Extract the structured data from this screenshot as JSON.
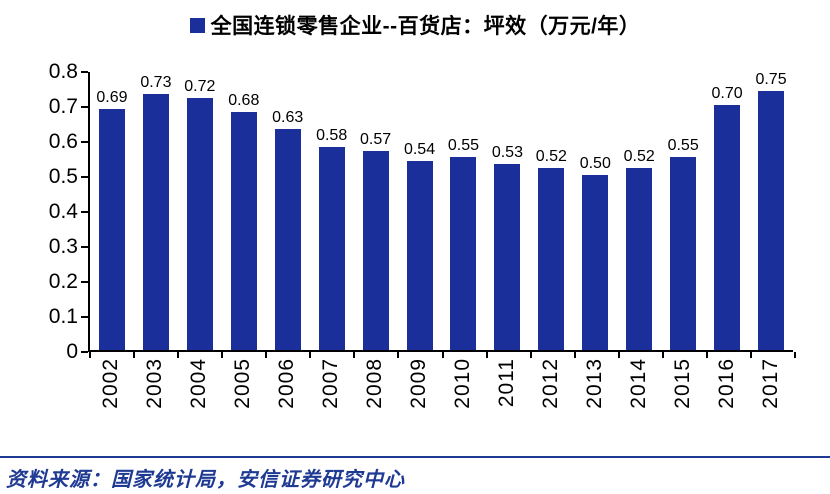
{
  "chart_data": {
    "type": "bar",
    "title": "全国连锁零售企业--百货店：坪效（万元/年）",
    "categories": [
      "2002",
      "2003",
      "2004",
      "2005",
      "2006",
      "2007",
      "2008",
      "2009",
      "2010",
      "2011",
      "2012",
      "2013",
      "2014",
      "2015",
      "2016",
      "2017"
    ],
    "values": [
      0.69,
      0.73,
      0.72,
      0.68,
      0.63,
      0.58,
      0.57,
      0.54,
      0.55,
      0.53,
      0.52,
      0.5,
      0.52,
      0.55,
      0.7,
      0.75
    ],
    "ylim": [
      0,
      0.8
    ],
    "ytick_labels": [
      "0.8",
      "0.7",
      "0.6",
      "0.5",
      "0.4",
      "0.3",
      "0.2",
      "0.1",
      "0"
    ],
    "value_label_decimals": 2,
    "grid": false,
    "legend_position": "top",
    "bar_color": "#1B2F9B",
    "axis_color": "#000000"
  },
  "legend": {
    "label": "全国连锁零售企业--百货店：坪效（万元/年）",
    "marker_color": "#1B2F9B"
  },
  "footer": {
    "source": "资料来源：国家统计局，安信证券研究中心",
    "text_color": "#1F3A93",
    "rule_color": "#1F3A93"
  }
}
